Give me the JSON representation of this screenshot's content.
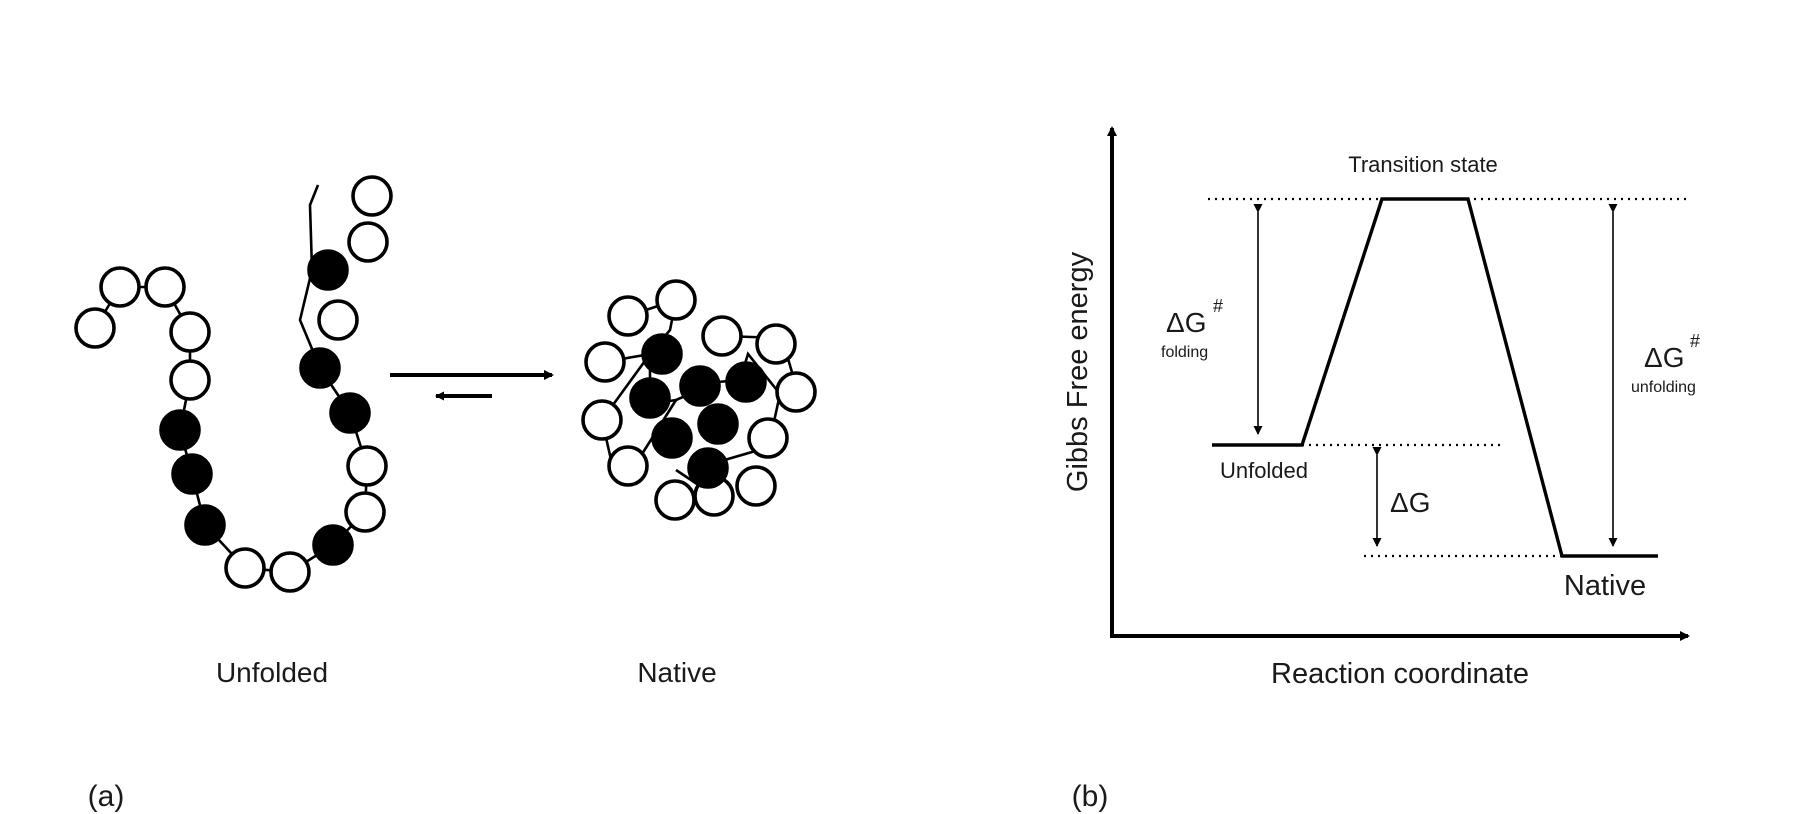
{
  "panel_a": {
    "panel_label": "(a)",
    "unfolded_label": "Unfolded",
    "native_label": "Native"
  },
  "panel_b": {
    "panel_label": "(b)",
    "y_axis_label": "Gibbs Free energy",
    "x_axis_label": "Reaction coordinate",
    "transition_state_label": "Transition state",
    "unfolded_label": "Unfolded",
    "native_label": "Native",
    "dg_folding": {
      "symbol": "ΔG",
      "superscript": "#",
      "subscript": "folding"
    },
    "dg_unfolding": {
      "symbol": "ΔG",
      "superscript": "#",
      "subscript": "unfolding"
    },
    "dg": "ΔG"
  }
}
